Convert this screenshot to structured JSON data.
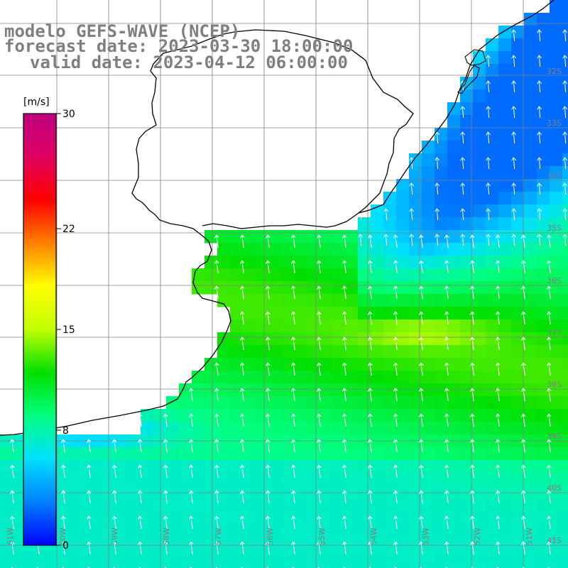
{
  "title": {
    "model": "modelo GEFS-WAVE (NCEP)",
    "forecast": "forecast date: 2023-03-30 18:00:00",
    "valid": "valid date: 2023-04-12 06:00:00"
  },
  "colorbar": {
    "unit": "[m/s]",
    "ticks": [
      "30",
      "22",
      "15",
      "8",
      "0"
    ],
    "tick_values": [
      30,
      22,
      15,
      8,
      0
    ],
    "range": [
      0,
      30
    ],
    "colors": [
      "#0000ff",
      "#0080ff",
      "#00e0ff",
      "#00ff80",
      "#00e000",
      "#c0ff00",
      "#ffff00",
      "#ff8000",
      "#ff0000",
      "#e00060",
      "#c00080"
    ]
  },
  "lat_labels": [
    "32S",
    "33S",
    "34S",
    "35S",
    "36S",
    "37S",
    "38S",
    "39S",
    "40S",
    "41S"
  ],
  "lon_labels": [
    "61W",
    "60W",
    "59W",
    "58W",
    "57W",
    "56W",
    "55W",
    "54W",
    "53W",
    "52W",
    "51W"
  ],
  "chart_data": {
    "type": "heatmap",
    "variable": "wind speed",
    "unit": "m/s",
    "lon_range": [
      -61.5,
      -50.6
    ],
    "lat_range": [
      -41.5,
      -30.8
    ],
    "typical_values": {
      "coastal_blue_zone": 4,
      "central_green_band": 12,
      "peak_yellowish": 14.5,
      "southern_cyan": 8.5
    },
    "arrows": "white wind arrows, mostly pointing north / north-northwest"
  }
}
